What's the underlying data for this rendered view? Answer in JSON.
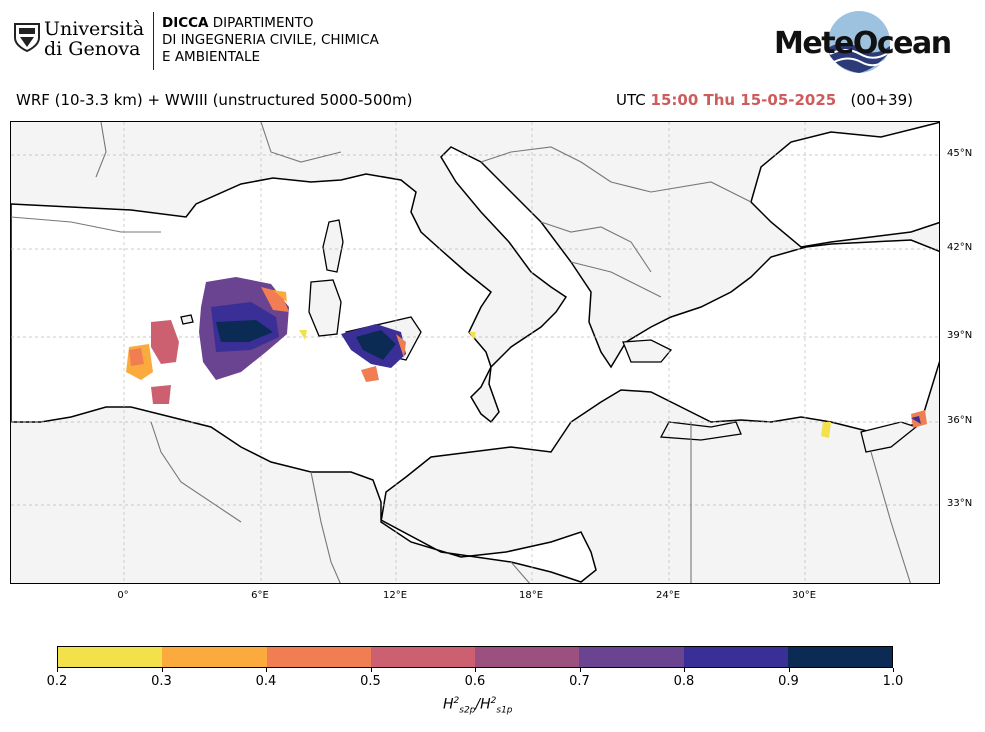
{
  "header": {
    "university": {
      "line1": "Università",
      "line2": "di Genova"
    },
    "department": {
      "bold": "DICCA",
      "line1_rest": " DIPARTIMENTO",
      "line2": "DI INGEGNERIA CIVILE, CHIMICA",
      "line3": "E AMBIENTALE"
    },
    "brand": "MeteOcean"
  },
  "model_label": "WRF (10-3.3 km) + WWIII (unstructured 5000-500m)",
  "forecast": {
    "prefix": "UTC ",
    "time": "15:00 Thu 15-05-2025",
    "lead": "   (00+39)"
  },
  "map": {
    "lat_ticks": [
      "45°N",
      "42°N",
      "39°N",
      "36°N",
      "33°N"
    ],
    "lon_ticks": [
      "0°",
      "6°E",
      "12°E",
      "18°E",
      "24°E",
      "30°E"
    ]
  },
  "colorbar": {
    "ticks": [
      "0.2",
      "0.3",
      "0.4",
      "0.5",
      "0.6",
      "0.7",
      "0.8",
      "0.9",
      "1.0"
    ],
    "colors": [
      "#f2e14a",
      "#fbaa3e",
      "#f07e52",
      "#cc6070",
      "#9c507f",
      "#6a4391",
      "#3a2f96",
      "#0b2b55"
    ],
    "label": {
      "H": "H",
      "sup": "2",
      "sub1": "s2p",
      "sep": "/",
      "sub2": "s1p"
    }
  },
  "colors": {
    "land": "#f4f4f4",
    "coast": "#000000",
    "border": "#777777",
    "grid": "#bbbbbb",
    "time_accent": "#cd5c5c"
  }
}
